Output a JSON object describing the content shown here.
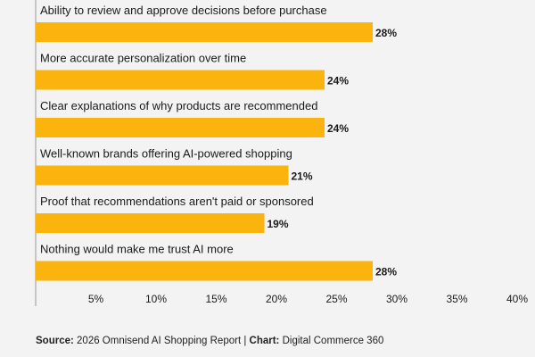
{
  "chart_data": {
    "type": "bar",
    "orientation": "horizontal",
    "title": "",
    "xlabel": "",
    "ylabel": "",
    "categories": [
      "Ability to review and approve decisions before purchase",
      "More accurate personalization over time",
      "Clear explanations of why products are recommended",
      "Well-known brands offering AI-powered shopping",
      "Proof that recommendations aren't paid or sponsored",
      "Nothing would make me trust AI more"
    ],
    "values": [
      28,
      24,
      24,
      21,
      19,
      28
    ],
    "value_labels": [
      "28%",
      "24%",
      "24%",
      "21%",
      "19%",
      "28%"
    ],
    "xlim": [
      0,
      40
    ],
    "ticks": [
      5,
      10,
      15,
      20,
      25,
      30,
      35,
      40
    ],
    "tick_labels": [
      "5%",
      "10%",
      "15%",
      "20%",
      "25%",
      "30%",
      "35%",
      "40%"
    ],
    "bar_color": "#fbb30d",
    "grid": false
  },
  "footer": {
    "source_label": "Source:",
    "source_text": " 2026 Omnisend AI Shopping Report | ",
    "chart_label": "Chart:",
    "chart_text": " Digital Commerce 360"
  }
}
